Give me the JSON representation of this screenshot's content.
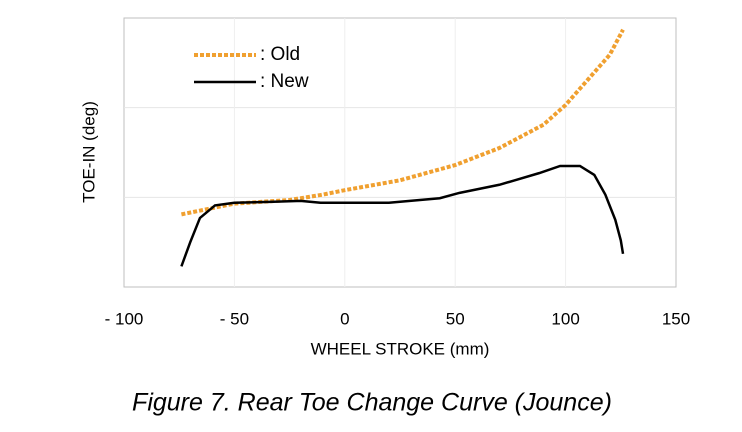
{
  "chart_data": {
    "type": "line",
    "caption": "Figure 7. Rear Toe Change Curve (Jounce)",
    "xlabel": "WHEEL STROKE (mm)",
    "ylabel": "TOE-IN (deg)",
    "xlim": [
      -100,
      150
    ],
    "xticks": [
      {
        "value": -100,
        "label": "- 100"
      },
      {
        "value": -50,
        "label": "- 50"
      },
      0,
      50,
      100,
      150
    ],
    "ylim": [
      0,
      3
    ],
    "grid": true,
    "legend": "upper left",
    "series": [
      {
        "name": ": Old",
        "color": "#f0a030",
        "style": "dotted",
        "x": [
          -74,
          -60,
          -50,
          -25,
          -10,
          0,
          25,
          50,
          70,
          90,
          100,
          110,
          120,
          126
        ],
        "values": [
          0.81,
          0.88,
          0.93,
          0.97,
          1.03,
          1.08,
          1.19,
          1.36,
          1.55,
          1.81,
          2.03,
          2.31,
          2.59,
          2.87
        ]
      },
      {
        "name": ": New",
        "color": "#000000",
        "style": "solid",
        "x": [
          -74,
          -70,
          -65.6,
          -58.8,
          -50,
          -34,
          -20,
          -11,
          20,
          34,
          43,
          52,
          70,
          77,
          88,
          97.5,
          106.5,
          113,
          118,
          122.5,
          125,
          126
        ],
        "values": [
          0.23,
          0.5,
          0.77,
          0.91,
          0.94,
          0.95,
          0.96,
          0.94,
          0.94,
          0.97,
          0.99,
          1.05,
          1.14,
          1.19,
          1.27,
          1.35,
          1.35,
          1.25,
          1.03,
          0.75,
          0.52,
          0.37
        ]
      }
    ]
  }
}
